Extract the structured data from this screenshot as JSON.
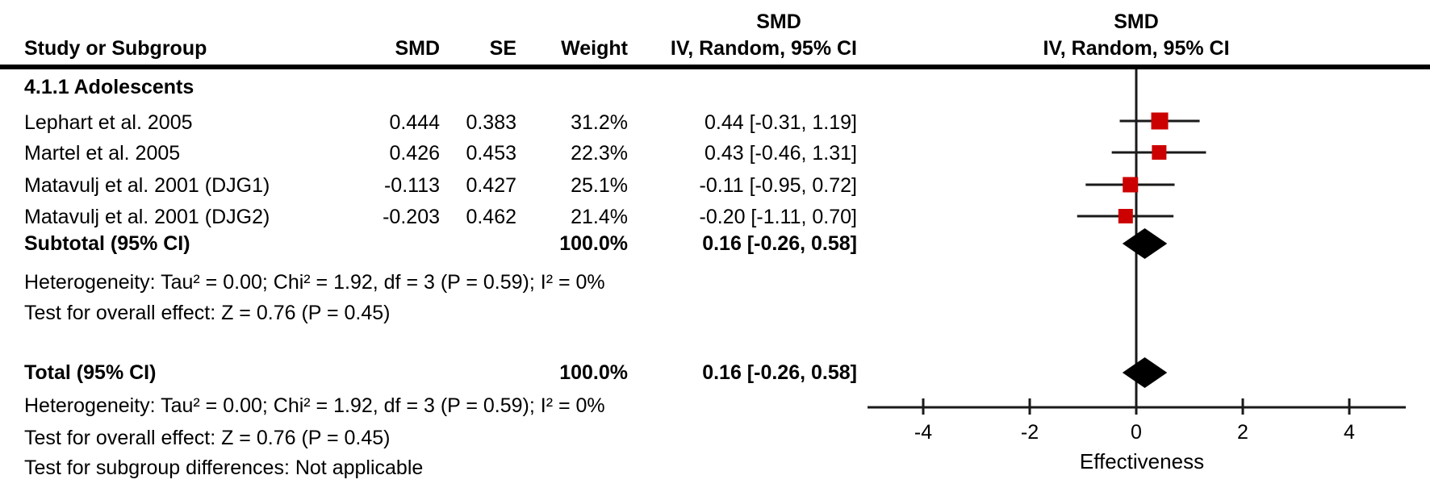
{
  "table": {
    "header": {
      "study": "Study or Subgroup",
      "smd": "SMD",
      "se": "SE",
      "weight": "Weight",
      "ci_line1": "SMD",
      "ci_line2": "IV, Random, 95% CI"
    },
    "plot_header": {
      "line1": "SMD",
      "line2": "IV, Random, 95% CI"
    },
    "group_label": "4.1.1 Adolescents",
    "rows": [
      {
        "study": "Lephart et al. 2005",
        "smd": "0.444",
        "se": "0.383",
        "weight": "31.2%",
        "ci": "0.44 [-0.31, 1.19]"
      },
      {
        "study": "Martel et al. 2005",
        "smd": "0.426",
        "se": "0.453",
        "weight": "22.3%",
        "ci": "0.43 [-0.46, 1.31]"
      },
      {
        "study": "Matavulj et al. 2001 (DJG1)",
        "smd": "-0.113",
        "se": "0.427",
        "weight": "25.1%",
        "ci": "-0.11 [-0.95, 0.72]"
      },
      {
        "study": "Matavulj et al. 2001 (DJG2)",
        "smd": "-0.203",
        "se": "0.462",
        "weight": "21.4%",
        "ci": "-0.20 [-1.11, 0.70]"
      }
    ],
    "subtotal": {
      "label": "Subtotal (95% CI)",
      "weight": "100.0%",
      "ci": "0.16 [-0.26, 0.58]"
    },
    "subtotal_heterogeneity": "Heterogeneity: Tau² = 0.00; Chi² = 1.92, df = 3 (P = 0.59); I² = 0%",
    "subtotal_overall_test": "Test for overall effect: Z = 0.76 (P = 0.45)",
    "total": {
      "label": "Total (95% CI)",
      "weight": "100.0%",
      "ci": "0.16 [-0.26, 0.58]"
    },
    "total_heterogeneity": "Heterogeneity: Tau² = 0.00; Chi² = 1.92, df = 3 (P = 0.59); I² = 0%",
    "total_overall_test": "Test for overall effect: Z = 0.76 (P = 0.45)",
    "subgroup_test": "Test for subgroup differences: Not applicable"
  },
  "chart_data": {
    "type": "forest",
    "effect_measure": "SMD, IV, Random, 95% CI",
    "axis": {
      "ticks": [
        -4,
        -2,
        0,
        2,
        4
      ],
      "range": [
        -5.05,
        5.06
      ],
      "label": "Effectiveness"
    },
    "studies": [
      {
        "name": "Lephart et al. 2005",
        "point": 0.44,
        "ci_low": -0.31,
        "ci_high": 1.19,
        "weight_pct": 31.2
      },
      {
        "name": "Martel et al. 2005",
        "point": 0.43,
        "ci_low": -0.46,
        "ci_high": 1.31,
        "weight_pct": 22.3
      },
      {
        "name": "Matavulj et al. 2001 (DJG1)",
        "point": -0.11,
        "ci_low": -0.95,
        "ci_high": 0.72,
        "weight_pct": 25.1
      },
      {
        "name": "Matavulj et al. 2001 (DJG2)",
        "point": -0.2,
        "ci_low": -1.11,
        "ci_high": 0.7,
        "weight_pct": 21.4
      }
    ],
    "subtotal": {
      "point": 0.16,
      "ci_low": -0.26,
      "ci_high": 0.58
    },
    "total": {
      "point": 0.16,
      "ci_low": -0.26,
      "ci_high": 0.58
    },
    "colors": {
      "square": "#cc0000",
      "diamond": "#000000",
      "line": "#1a1a1a"
    }
  }
}
